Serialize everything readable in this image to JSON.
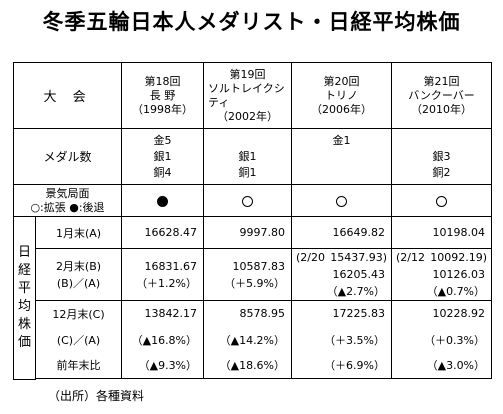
{
  "title": "冬季五輪日本人メダリスト・日経平均株価",
  "source": "（出所）各種資料",
  "header": {
    "taikai_label": "大 会",
    "events": [
      {
        "number": "第18回",
        "city": "長 野",
        "year": "（1998年）"
      },
      {
        "number": "第19回",
        "city": "ソルトレイクシティ",
        "year": "（2002年）"
      },
      {
        "number": "第20回",
        "city": "トリノ",
        "year": "（2006年）"
      },
      {
        "number": "第21回",
        "city": "バンクーバー",
        "year": "（2010年）"
      }
    ]
  },
  "medals": {
    "label": "メダル数",
    "values": [
      {
        "lines": [
          "金5",
          "銀1",
          "銅4"
        ]
      },
      {
        "lines": [
          "",
          "銀1",
          "銅1"
        ]
      },
      {
        "lines": [
          "金1",
          "",
          ""
        ]
      },
      {
        "lines": [
          "",
          "銀3",
          "銅2"
        ]
      }
    ]
  },
  "economy": {
    "label_line1": "景気局面",
    "label_line2": "○:拡張 ●:後退",
    "phases": [
      "●",
      "○",
      "○",
      "○"
    ]
  },
  "nikkei": {
    "vertical_label": [
      "日",
      "経",
      "平",
      "均",
      "株",
      "価"
    ],
    "jan": {
      "label": "1月末(A)",
      "values": [
        "16628.47",
        "9997.80",
        "16649.82",
        "10198.04"
      ]
    },
    "feb": {
      "label1": "2月末(B)",
      "label2": "(B)／(A)",
      "values": [
        {
          "top_left": "",
          "top": "16831.67",
          "bottom": "（＋1.2%）"
        },
        {
          "top_left": "",
          "top": "10587.83",
          "bottom": "（＋5.9%）"
        },
        {
          "top_left": "(2/20",
          "top": "15437.93)",
          "bottom": "16205.43（▲2.7%）"
        },
        {
          "top_left": "(2/12",
          "top": "10092.19)",
          "bottom": "10126.03（▲0.7%）"
        }
      ]
    },
    "dec": {
      "label1": "12月末(C)",
      "label2": "(C)／(A)",
      "label3": "前年末比",
      "values": [
        {
          "v": "13842.17",
          "ca": "（▲16.8%）",
          "prev": "（▲9.3%）"
        },
        {
          "v": "8578.95",
          "ca": "（▲14.2%）",
          "prev": "（▲18.6%）"
        },
        {
          "v": "17225.83",
          "ca": "（＋3.5%）",
          "prev": "（＋6.9%）"
        },
        {
          "v": "10228.92",
          "ca": "（＋0.3%）",
          "prev": "（▲3.0%）"
        }
      ]
    }
  }
}
